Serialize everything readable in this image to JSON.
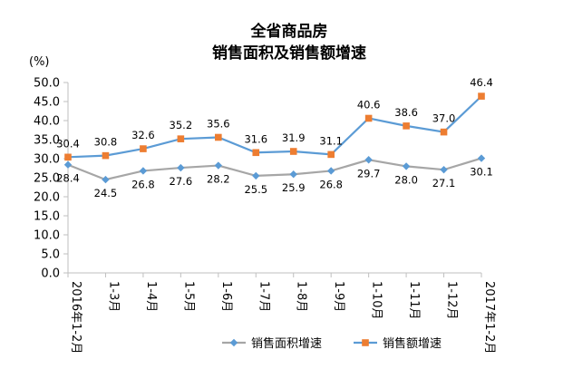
{
  "chart_data": {
    "type": "line",
    "title": [
      "全省商品房",
      "销售面积及销售额增速"
    ],
    "ylabel": "(%)",
    "ylim": [
      0,
      50
    ],
    "ytick_step": 5,
    "grid": false,
    "legend_position": "bottom",
    "categories": [
      "2016年1-2月",
      "1-3月",
      "1-4月",
      "1-5月",
      "1-6月",
      "1-7月",
      "1-8月",
      "1-9月",
      "1-10月",
      "1-11月",
      "1-12月",
      "2017年1-2月"
    ],
    "series": [
      {
        "name": "销售面积增速",
        "values": [
          28.4,
          24.5,
          26.8,
          27.6,
          28.2,
          25.5,
          25.9,
          26.8,
          29.7,
          28.0,
          27.1,
          30.1
        ],
        "color": "#a6a6a6",
        "marker_color": "#5b9bd5",
        "marker": "diamond"
      },
      {
        "name": "销售额增速",
        "values": [
          30.4,
          30.8,
          32.6,
          35.2,
          35.6,
          31.6,
          31.9,
          31.1,
          40.6,
          38.6,
          37.0,
          46.4
        ],
        "color": "#5b9bd5",
        "marker_color": "#ed7d31",
        "marker": "square"
      }
    ]
  }
}
